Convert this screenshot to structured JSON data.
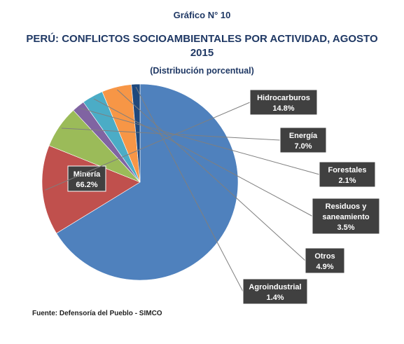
{
  "header": {
    "pretitle": "Gráfico N° 10",
    "title_line1": "PERÚ: CONFLICTOS SOCIOAMBIENTALES POR ACTIVIDAD, AGOSTO",
    "title_line2": "2015",
    "subtitle": "(Distribución porcentual)"
  },
  "source": "Fuente: Defensoría del Pueblo - SIMCO",
  "chart_data": {
    "type": "pie",
    "title": "PERÚ: CONFLICTOS SOCIOAMBIENTALES POR ACTIVIDAD, AGOSTO 2015",
    "subtitle": "(Distribución porcentual)",
    "unit": "%",
    "slices": [
      {
        "label": "Minería",
        "value": 66.2,
        "value_label": "66.2%",
        "color": "#4f81bd"
      },
      {
        "label": "Hidrocarburos",
        "value": 14.8,
        "value_label": "14.8%",
        "color": "#c0504d"
      },
      {
        "label": "Energía",
        "value": 7.0,
        "value_label": "7.0%",
        "color": "#9bbb59"
      },
      {
        "label": "Forestales",
        "value": 2.1,
        "value_label": "2.1%",
        "color": "#8064a2"
      },
      {
        "label": "Residuos y saneamiento",
        "value": 3.5,
        "value_label": "3.5%",
        "color": "#4bacc6"
      },
      {
        "label": "Otros",
        "value": 4.9,
        "value_label": "4.9%",
        "color": "#f79646"
      },
      {
        "label": "Agroindustrial",
        "value": 1.4,
        "value_label": "1.4%",
        "color": "#1f497d"
      }
    ],
    "label_box_color": "#404040"
  }
}
